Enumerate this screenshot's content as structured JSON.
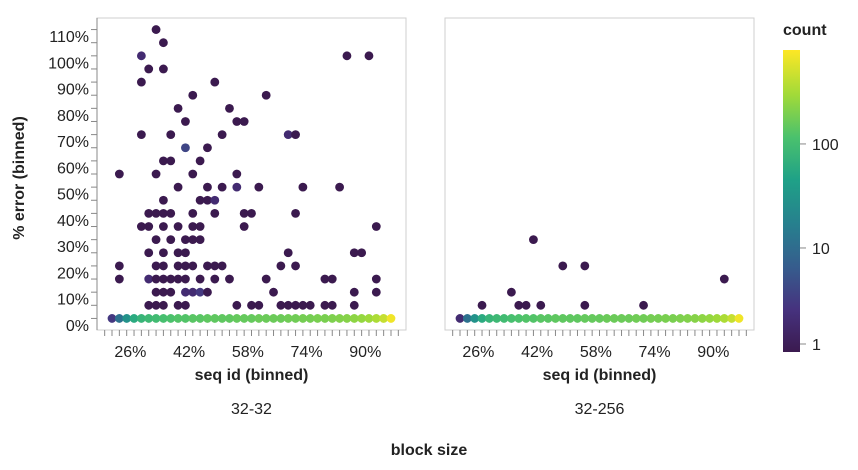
{
  "chart_data": {
    "type": "scatter",
    "facet_title": "block size",
    "xlabel": "seq id (binned)",
    "ylabel": "% error (binned)",
    "x_ticks": [
      "26%",
      "42%",
      "58%",
      "74%",
      "90%"
    ],
    "y_ticks": [
      "0%",
      "10%",
      "20%",
      "30%",
      "40%",
      "50%",
      "60%",
      "70%",
      "80%",
      "90%",
      "100%",
      "110%"
    ],
    "xlim": [
      18,
      100
    ],
    "ylim": [
      0,
      115
    ],
    "color_scale": {
      "title": "count",
      "scale": "log",
      "ticks": [
        "1",
        "10",
        "100"
      ],
      "domain": [
        1,
        800
      ],
      "colors": [
        "#3b1a4f",
        "#46327e",
        "#365c8d",
        "#277f8e",
        "#1fa187",
        "#4ac16d",
        "#a0da39",
        "#fde725"
      ]
    },
    "legend_position": "right",
    "facets": [
      {
        "label": "32-32",
        "points": [
          {
            "x": 21,
            "y": 2.5,
            "c": 3
          },
          {
            "x": 23,
            "y": 2.5,
            "c": 12
          },
          {
            "x": 25,
            "y": 2.5,
            "c": 30
          },
          {
            "x": 27,
            "y": 2.5,
            "c": 60
          },
          {
            "x": 29,
            "y": 2.5,
            "c": 80
          },
          {
            "x": 31,
            "y": 2.5,
            "c": 90
          },
          {
            "x": 33,
            "y": 2.5,
            "c": 100
          },
          {
            "x": 35,
            "y": 2.5,
            "c": 110
          },
          {
            "x": 37,
            "y": 2.5,
            "c": 120
          },
          {
            "x": 39,
            "y": 2.5,
            "c": 130
          },
          {
            "x": 41,
            "y": 2.5,
            "c": 130
          },
          {
            "x": 43,
            "y": 2.5,
            "c": 140
          },
          {
            "x": 45,
            "y": 2.5,
            "c": 140
          },
          {
            "x": 47,
            "y": 2.5,
            "c": 150
          },
          {
            "x": 49,
            "y": 2.5,
            "c": 150
          },
          {
            "x": 51,
            "y": 2.5,
            "c": 150
          },
          {
            "x": 53,
            "y": 2.5,
            "c": 150
          },
          {
            "x": 55,
            "y": 2.5,
            "c": 160
          },
          {
            "x": 57,
            "y": 2.5,
            "c": 160
          },
          {
            "x": 59,
            "y": 2.5,
            "c": 160
          },
          {
            "x": 61,
            "y": 2.5,
            "c": 170
          },
          {
            "x": 63,
            "y": 2.5,
            "c": 170
          },
          {
            "x": 65,
            "y": 2.5,
            "c": 170
          },
          {
            "x": 67,
            "y": 2.5,
            "c": 170
          },
          {
            "x": 69,
            "y": 2.5,
            "c": 180
          },
          {
            "x": 71,
            "y": 2.5,
            "c": 180
          },
          {
            "x": 73,
            "y": 2.5,
            "c": 190
          },
          {
            "x": 75,
            "y": 2.5,
            "c": 190
          },
          {
            "x": 77,
            "y": 2.5,
            "c": 200
          },
          {
            "x": 79,
            "y": 2.5,
            "c": 200
          },
          {
            "x": 81,
            "y": 2.5,
            "c": 210
          },
          {
            "x": 83,
            "y": 2.5,
            "c": 220
          },
          {
            "x": 85,
            "y": 2.5,
            "c": 230
          },
          {
            "x": 87,
            "y": 2.5,
            "c": 250
          },
          {
            "x": 89,
            "y": 2.5,
            "c": 270
          },
          {
            "x": 91,
            "y": 2.5,
            "c": 300
          },
          {
            "x": 93,
            "y": 2.5,
            "c": 350
          },
          {
            "x": 95,
            "y": 2.5,
            "c": 450
          },
          {
            "x": 97,
            "y": 2.5,
            "c": 700
          },
          {
            "x": 23,
            "y": 17.5,
            "c": 1
          },
          {
            "x": 23,
            "y": 22.5,
            "c": 1
          },
          {
            "x": 23,
            "y": 57.5,
            "c": 1
          },
          {
            "x": 29,
            "y": 37.5,
            "c": 1
          },
          {
            "x": 29,
            "y": 72.5,
            "c": 1
          },
          {
            "x": 29,
            "y": 92.5,
            "c": 1
          },
          {
            "x": 29,
            "y": 102.5,
            "c": 2
          },
          {
            "x": 31,
            "y": 7.5,
            "c": 1
          },
          {
            "x": 31,
            "y": 17.5,
            "c": 2
          },
          {
            "x": 31,
            "y": 27.5,
            "c": 1
          },
          {
            "x": 31,
            "y": 37.5,
            "c": 1
          },
          {
            "x": 31,
            "y": 42.5,
            "c": 1
          },
          {
            "x": 31,
            "y": 97.5,
            "c": 1
          },
          {
            "x": 33,
            "y": 7.5,
            "c": 1
          },
          {
            "x": 33,
            "y": 12.5,
            "c": 1
          },
          {
            "x": 33,
            "y": 17.5,
            "c": 1
          },
          {
            "x": 33,
            "y": 22.5,
            "c": 1
          },
          {
            "x": 33,
            "y": 32.5,
            "c": 1
          },
          {
            "x": 33,
            "y": 42.5,
            "c": 1
          },
          {
            "x": 33,
            "y": 57.5,
            "c": 1
          },
          {
            "x": 33,
            "y": 112.5,
            "c": 1
          },
          {
            "x": 35,
            "y": 7.5,
            "c": 1
          },
          {
            "x": 35,
            "y": 12.5,
            "c": 1
          },
          {
            "x": 35,
            "y": 17.5,
            "c": 1
          },
          {
            "x": 35,
            "y": 22.5,
            "c": 1
          },
          {
            "x": 35,
            "y": 27.5,
            "c": 1
          },
          {
            "x": 35,
            "y": 37.5,
            "c": 1
          },
          {
            "x": 35,
            "y": 42.5,
            "c": 1
          },
          {
            "x": 35,
            "y": 47.5,
            "c": 1
          },
          {
            "x": 35,
            "y": 62.5,
            "c": 1
          },
          {
            "x": 35,
            "y": 97.5,
            "c": 1
          },
          {
            "x": 35,
            "y": 107.5,
            "c": 1
          },
          {
            "x": 37,
            "y": 12.5,
            "c": 1
          },
          {
            "x": 37,
            "y": 17.5,
            "c": 1
          },
          {
            "x": 37,
            "y": 32.5,
            "c": 1
          },
          {
            "x": 37,
            "y": 42.5,
            "c": 1
          },
          {
            "x": 37,
            "y": 62.5,
            "c": 1
          },
          {
            "x": 37,
            "y": 72.5,
            "c": 1
          },
          {
            "x": 39,
            "y": 7.5,
            "c": 1
          },
          {
            "x": 39,
            "y": 17.5,
            "c": 1
          },
          {
            "x": 39,
            "y": 22.5,
            "c": 1
          },
          {
            "x": 39,
            "y": 27.5,
            "c": 1
          },
          {
            "x": 39,
            "y": 37.5,
            "c": 1
          },
          {
            "x": 39,
            "y": 52.5,
            "c": 1
          },
          {
            "x": 39,
            "y": 82.5,
            "c": 1
          },
          {
            "x": 41,
            "y": 7.5,
            "c": 1
          },
          {
            "x": 41,
            "y": 12.5,
            "c": 2
          },
          {
            "x": 41,
            "y": 17.5,
            "c": 1
          },
          {
            "x": 41,
            "y": 22.5,
            "c": 1
          },
          {
            "x": 41,
            "y": 27.5,
            "c": 1
          },
          {
            "x": 41,
            "y": 32.5,
            "c": 1
          },
          {
            "x": 41,
            "y": 67.5,
            "c": 4
          },
          {
            "x": 41,
            "y": 77.5,
            "c": 1
          },
          {
            "x": 43,
            "y": 12.5,
            "c": 2
          },
          {
            "x": 43,
            "y": 22.5,
            "c": 1
          },
          {
            "x": 43,
            "y": 32.5,
            "c": 1
          },
          {
            "x": 43,
            "y": 37.5,
            "c": 1
          },
          {
            "x": 43,
            "y": 42.5,
            "c": 1
          },
          {
            "x": 43,
            "y": 57.5,
            "c": 1
          },
          {
            "x": 43,
            "y": 87.5,
            "c": 1
          },
          {
            "x": 45,
            "y": 12.5,
            "c": 3
          },
          {
            "x": 45,
            "y": 17.5,
            "c": 1
          },
          {
            "x": 45,
            "y": 32.5,
            "c": 1
          },
          {
            "x": 45,
            "y": 37.5,
            "c": 1
          },
          {
            "x": 45,
            "y": 47.5,
            "c": 1
          },
          {
            "x": 45,
            "y": 62.5,
            "c": 1
          },
          {
            "x": 47,
            "y": 12.5,
            "c": 1
          },
          {
            "x": 47,
            "y": 22.5,
            "c": 1
          },
          {
            "x": 47,
            "y": 47.5,
            "c": 1
          },
          {
            "x": 47,
            "y": 52.5,
            "c": 1
          },
          {
            "x": 47,
            "y": 67.5,
            "c": 1
          },
          {
            "x": 49,
            "y": 17.5,
            "c": 1
          },
          {
            "x": 49,
            "y": 22.5,
            "c": 1
          },
          {
            "x": 49,
            "y": 42.5,
            "c": 1
          },
          {
            "x": 49,
            "y": 47.5,
            "c": 2
          },
          {
            "x": 49,
            "y": 92.5,
            "c": 1
          },
          {
            "x": 51,
            "y": 22.5,
            "c": 1
          },
          {
            "x": 51,
            "y": 52.5,
            "c": 1
          },
          {
            "x": 51,
            "y": 72.5,
            "c": 1
          },
          {
            "x": 53,
            "y": 17.5,
            "c": 1
          },
          {
            "x": 53,
            "y": 82.5,
            "c": 1
          },
          {
            "x": 55,
            "y": 7.5,
            "c": 1
          },
          {
            "x": 55,
            "y": 52.5,
            "c": 2
          },
          {
            "x": 55,
            "y": 57.5,
            "c": 1
          },
          {
            "x": 55,
            "y": 77.5,
            "c": 1
          },
          {
            "x": 57,
            "y": 37.5,
            "c": 1
          },
          {
            "x": 57,
            "y": 42.5,
            "c": 1
          },
          {
            "x": 57,
            "y": 77.5,
            "c": 1
          },
          {
            "x": 59,
            "y": 7.5,
            "c": 1
          },
          {
            "x": 59,
            "y": 42.5,
            "c": 1
          },
          {
            "x": 61,
            "y": 7.5,
            "c": 1
          },
          {
            "x": 61,
            "y": 52.5,
            "c": 1
          },
          {
            "x": 63,
            "y": 17.5,
            "c": 1
          },
          {
            "x": 63,
            "y": 87.5,
            "c": 1
          },
          {
            "x": 65,
            "y": 12.5,
            "c": 1
          },
          {
            "x": 67,
            "y": 7.5,
            "c": 1
          },
          {
            "x": 67,
            "y": 22.5,
            "c": 1
          },
          {
            "x": 69,
            "y": 7.5,
            "c": 1
          },
          {
            "x": 69,
            "y": 27.5,
            "c": 1
          },
          {
            "x": 69,
            "y": 72.5,
            "c": 2
          },
          {
            "x": 71,
            "y": 7.5,
            "c": 1
          },
          {
            "x": 71,
            "y": 22.5,
            "c": 1
          },
          {
            "x": 71,
            "y": 42.5,
            "c": 1
          },
          {
            "x": 71,
            "y": 72.5,
            "c": 1
          },
          {
            "x": 73,
            "y": 7.5,
            "c": 1
          },
          {
            "x": 73,
            "y": 52.5,
            "c": 1
          },
          {
            "x": 75,
            "y": 7.5,
            "c": 1
          },
          {
            "x": 79,
            "y": 7.5,
            "c": 1
          },
          {
            "x": 79,
            "y": 17.5,
            "c": 1
          },
          {
            "x": 81,
            "y": 7.5,
            "c": 1
          },
          {
            "x": 81,
            "y": 17.5,
            "c": 1
          },
          {
            "x": 83,
            "y": 52.5,
            "c": 1
          },
          {
            "x": 85,
            "y": 102.5,
            "c": 1
          },
          {
            "x": 87,
            "y": 7.5,
            "c": 1
          },
          {
            "x": 87,
            "y": 12.5,
            "c": 1
          },
          {
            "x": 87,
            "y": 27.5,
            "c": 1
          },
          {
            "x": 89,
            "y": 27.5,
            "c": 1
          },
          {
            "x": 91,
            "y": 102.5,
            "c": 1
          },
          {
            "x": 93,
            "y": 12.5,
            "c": 1
          },
          {
            "x": 93,
            "y": 17.5,
            "c": 1
          },
          {
            "x": 93,
            "y": 37.5,
            "c": 1
          }
        ]
      },
      {
        "label": "32-256",
        "points": [
          {
            "x": 21,
            "y": 2.5,
            "c": 2
          },
          {
            "x": 23,
            "y": 2.5,
            "c": 12
          },
          {
            "x": 25,
            "y": 2.5,
            "c": 30
          },
          {
            "x": 27,
            "y": 2.5,
            "c": 60
          },
          {
            "x": 29,
            "y": 2.5,
            "c": 80
          },
          {
            "x": 31,
            "y": 2.5,
            "c": 90
          },
          {
            "x": 33,
            "y": 2.5,
            "c": 100
          },
          {
            "x": 35,
            "y": 2.5,
            "c": 110
          },
          {
            "x": 37,
            "y": 2.5,
            "c": 120
          },
          {
            "x": 39,
            "y": 2.5,
            "c": 130
          },
          {
            "x": 41,
            "y": 2.5,
            "c": 130
          },
          {
            "x": 43,
            "y": 2.5,
            "c": 140
          },
          {
            "x": 45,
            "y": 2.5,
            "c": 140
          },
          {
            "x": 47,
            "y": 2.5,
            "c": 150
          },
          {
            "x": 49,
            "y": 2.5,
            "c": 150
          },
          {
            "x": 51,
            "y": 2.5,
            "c": 150
          },
          {
            "x": 53,
            "y": 2.5,
            "c": 150
          },
          {
            "x": 55,
            "y": 2.5,
            "c": 160
          },
          {
            "x": 57,
            "y": 2.5,
            "c": 160
          },
          {
            "x": 59,
            "y": 2.5,
            "c": 160
          },
          {
            "x": 61,
            "y": 2.5,
            "c": 170
          },
          {
            "x": 63,
            "y": 2.5,
            "c": 170
          },
          {
            "x": 65,
            "y": 2.5,
            "c": 170
          },
          {
            "x": 67,
            "y": 2.5,
            "c": 170
          },
          {
            "x": 69,
            "y": 2.5,
            "c": 180
          },
          {
            "x": 71,
            "y": 2.5,
            "c": 180
          },
          {
            "x": 73,
            "y": 2.5,
            "c": 190
          },
          {
            "x": 75,
            "y": 2.5,
            "c": 190
          },
          {
            "x": 77,
            "y": 2.5,
            "c": 200
          },
          {
            "x": 79,
            "y": 2.5,
            "c": 200
          },
          {
            "x": 81,
            "y": 2.5,
            "c": 210
          },
          {
            "x": 83,
            "y": 2.5,
            "c": 220
          },
          {
            "x": 85,
            "y": 2.5,
            "c": 230
          },
          {
            "x": 87,
            "y": 2.5,
            "c": 250
          },
          {
            "x": 89,
            "y": 2.5,
            "c": 270
          },
          {
            "x": 91,
            "y": 2.5,
            "c": 300
          },
          {
            "x": 93,
            "y": 2.5,
            "c": 350
          },
          {
            "x": 95,
            "y": 2.5,
            "c": 450
          },
          {
            "x": 97,
            "y": 2.5,
            "c": 700
          },
          {
            "x": 27,
            "y": 7.5,
            "c": 1
          },
          {
            "x": 35,
            "y": 12.5,
            "c": 1
          },
          {
            "x": 37,
            "y": 7.5,
            "c": 1
          },
          {
            "x": 39,
            "y": 7.5,
            "c": 1
          },
          {
            "x": 41,
            "y": 32.5,
            "c": 1
          },
          {
            "x": 43,
            "y": 7.5,
            "c": 1
          },
          {
            "x": 49,
            "y": 22.5,
            "c": 1
          },
          {
            "x": 55,
            "y": 7.5,
            "c": 1
          },
          {
            "x": 55,
            "y": 22.5,
            "c": 1
          },
          {
            "x": 71,
            "y": 7.5,
            "c": 1
          },
          {
            "x": 93,
            "y": 17.5,
            "c": 1
          }
        ]
      }
    ]
  }
}
